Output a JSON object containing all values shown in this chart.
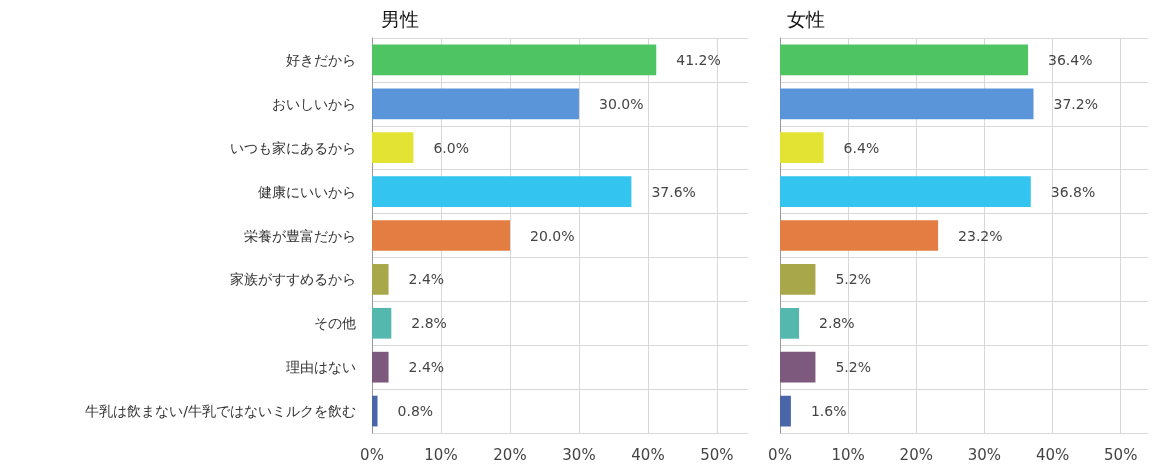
{
  "chart_data": [
    {
      "type": "bar",
      "orientation": "horizontal",
      "title": "男性",
      "categories": [
        "好きだから",
        "おいしいから",
        "いつも家にあるから",
        "健康にいいから",
        "栄養が豊富だから",
        "家族がすすめるから",
        "その他",
        "理由はない",
        "牛乳は飲まない/牛乳ではないミルクを飲む"
      ],
      "values": [
        41.2,
        30.0,
        6.0,
        37.6,
        20.0,
        2.4,
        2.8,
        2.4,
        0.8
      ],
      "value_labels": [
        "41.2%",
        "30.0%",
        "6.0%",
        "37.6%",
        "20.0%",
        "2.4%",
        "2.8%",
        "2.4%",
        "0.8%"
      ],
      "colors": [
        "#4ec462",
        "#5b95d9",
        "#e3e333",
        "#33c5ef",
        "#e37d42",
        "#a8a84a",
        "#55b8ae",
        "#7d5a7d",
        "#4b66a8"
      ],
      "xlim": [
        0,
        54.5
      ],
      "xticks": [
        {
          "value": 0,
          "label": "0%"
        },
        {
          "value": 10,
          "label": "10%"
        },
        {
          "value": 20,
          "label": "20%"
        },
        {
          "value": 30,
          "label": "30%"
        },
        {
          "value": 40,
          "label": "40%"
        },
        {
          "value": 50,
          "label": "50%"
        }
      ],
      "grid": true
    },
    {
      "type": "bar",
      "orientation": "horizontal",
      "title": "女性",
      "categories": [
        null,
        null,
        null,
        null,
        null,
        null,
        null,
        null,
        null
      ],
      "values": [
        36.4,
        37.2,
        6.4,
        36.8,
        23.2,
        5.2,
        2.8,
        5.2,
        1.6
      ],
      "value_labels": [
        "36.4%",
        "37.2%",
        "6.4%",
        "36.8%",
        "23.2%",
        "5.2%",
        "2.8%",
        "5.2%",
        "1.6%"
      ],
      "colors": [
        "#4ec462",
        "#5b95d9",
        "#e3e333",
        "#33c5ef",
        "#e37d42",
        "#a8a84a",
        "#55b8ae",
        "#7d5a7d",
        "#4b66a8"
      ],
      "xlim": [
        0,
        54
      ],
      "xticks": [
        {
          "value": 0,
          "label": "0%"
        },
        {
          "value": 10,
          "label": "10%"
        },
        {
          "value": 20,
          "label": "20%"
        },
        {
          "value": 30,
          "label": "30%"
        },
        {
          "value": 40,
          "label": "40%"
        },
        {
          "value": 50,
          "label": "50%"
        }
      ],
      "grid": true
    }
  ]
}
